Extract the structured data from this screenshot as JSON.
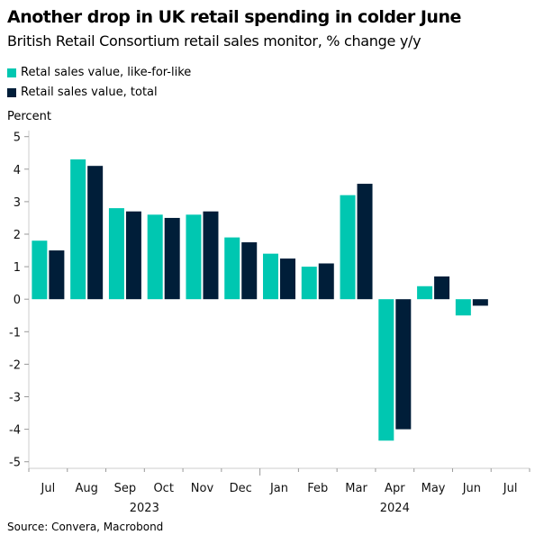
{
  "chart_data": {
    "type": "bar",
    "title": "Another drop in UK retail spending in colder June",
    "subtitle": "British Retail Consortium retail sales monitor, % change y/y",
    "ylabel": "Percent",
    "xlabel": "",
    "ylim": [
      -5,
      5
    ],
    "yticks": [
      "5",
      "4",
      "3",
      "2",
      "1",
      "0",
      "-1",
      "-2",
      "-3",
      "-4",
      "-5"
    ],
    "categories": [
      "Jul",
      "Aug",
      "Sep",
      "Oct",
      "Nov",
      "Dec",
      "Jan",
      "Feb",
      "Mar",
      "Apr",
      "May",
      "Jun",
      "Jul"
    ],
    "year_labels": [
      {
        "label": "2023",
        "span": [
          0,
          5
        ]
      },
      {
        "label": "2024",
        "span": [
          6,
          12
        ]
      }
    ],
    "series": [
      {
        "name": "Retal sales value, like-for-like",
        "color": "#00c7b1",
        "values": [
          1.8,
          4.3,
          2.8,
          2.6,
          2.6,
          1.9,
          1.4,
          1.0,
          3.2,
          -4.35,
          0.4,
          -0.5,
          null
        ]
      },
      {
        "name": "Retail sales value, total",
        "color": "#001e39",
        "values": [
          1.5,
          4.1,
          2.7,
          2.5,
          2.7,
          1.75,
          1.25,
          1.1,
          3.55,
          -4.0,
          0.7,
          -0.2,
          null
        ]
      }
    ],
    "grid": false,
    "legend_position": "top-left",
    "source": "Source: Convera, Macrobond"
  }
}
